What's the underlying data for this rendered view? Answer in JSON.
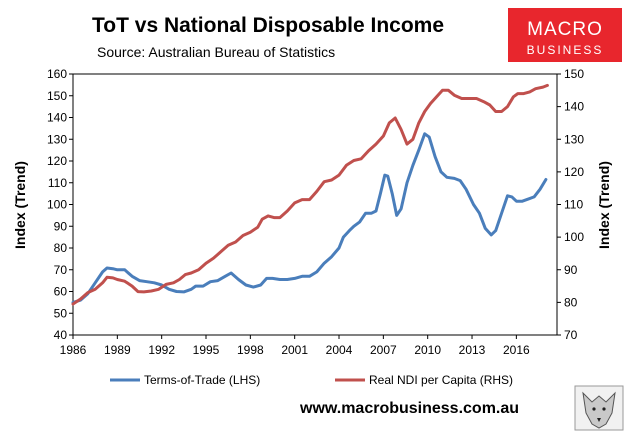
{
  "header": {
    "title": "ToT vs National Disposable Income",
    "subtitle": "Source: Australian Bureau of Statistics"
  },
  "logo": {
    "line1": "MACRO",
    "line2": "BUSINESS",
    "color": "#e8262d"
  },
  "footer": {
    "url": "www.macrobusiness.com.au",
    "badge_icon": "wolf-icon"
  },
  "chart_data": {
    "type": "line",
    "x_tick_labels": [
      "1986",
      "1989",
      "1992",
      "1995",
      "1998",
      "2001",
      "2004",
      "2007",
      "2010",
      "2013",
      "2016"
    ],
    "xlim": [
      1986,
      2018.75
    ],
    "ylabel_left": "Index (Trend)",
    "ylabel_right": "Index (Trend)",
    "ylim_left": [
      40,
      160
    ],
    "ylim_right": [
      70,
      150
    ],
    "y_ticks_left": [
      "40",
      "50",
      "60",
      "70",
      "80",
      "90",
      "100",
      "110",
      "120",
      "130",
      "140",
      "150",
      "160"
    ],
    "y_ticks_right": [
      "70",
      "80",
      "90",
      "100",
      "110",
      "120",
      "130",
      "140",
      "150"
    ],
    "grid": false,
    "legend_position": "bottom",
    "series": [
      {
        "name": "Terms-of-Trade (LHS)",
        "axis": "left",
        "color": "#4a7ebb",
        "points": [
          [
            1986,
            55
          ],
          [
            1986.5,
            56
          ],
          [
            1987,
            59
          ],
          [
            1987.5,
            64
          ],
          [
            1988,
            69
          ],
          [
            1988.3,
            70.8
          ],
          [
            1988.7,
            70.5
          ],
          [
            1989,
            70
          ],
          [
            1989.5,
            70
          ],
          [
            1990,
            67
          ],
          [
            1990.5,
            65
          ],
          [
            1991,
            64.5
          ],
          [
            1991.5,
            64
          ],
          [
            1992,
            63
          ],
          [
            1992.5,
            61
          ],
          [
            1993,
            60
          ],
          [
            1993.5,
            59.8
          ],
          [
            1994,
            61
          ],
          [
            1994.3,
            62.5
          ],
          [
            1994.8,
            62.5
          ],
          [
            1995.3,
            64.5
          ],
          [
            1995.8,
            65
          ],
          [
            1996.3,
            67
          ],
          [
            1996.7,
            68.5
          ],
          [
            1997.2,
            65.5
          ],
          [
            1997.7,
            63
          ],
          [
            1998.2,
            62
          ],
          [
            1998.7,
            63
          ],
          [
            1999.1,
            66
          ],
          [
            1999.5,
            66
          ],
          [
            2000,
            65.5
          ],
          [
            2000.5,
            65.5
          ],
          [
            2001,
            66
          ],
          [
            2001.5,
            67
          ],
          [
            2002,
            67
          ],
          [
            2002.5,
            69
          ],
          [
            2003,
            73
          ],
          [
            2003.5,
            76
          ],
          [
            2004,
            80
          ],
          [
            2004.3,
            85
          ],
          [
            2004.7,
            88
          ],
          [
            2005,
            90
          ],
          [
            2005.4,
            92
          ],
          [
            2005.8,
            96
          ],
          [
            2006.2,
            96
          ],
          [
            2006.5,
            97
          ],
          [
            2006.8,
            105
          ],
          [
            2007.1,
            113.5
          ],
          [
            2007.3,
            113
          ],
          [
            2007.6,
            105
          ],
          [
            2007.9,
            95
          ],
          [
            2008.2,
            98
          ],
          [
            2008.6,
            110
          ],
          [
            2009,
            118
          ],
          [
            2009.4,
            125
          ],
          [
            2009.8,
            132.5
          ],
          [
            2010.1,
            131
          ],
          [
            2010.5,
            122
          ],
          [
            2010.9,
            115
          ],
          [
            2011.3,
            112.5
          ],
          [
            2011.8,
            112
          ],
          [
            2012.2,
            111
          ],
          [
            2012.6,
            107
          ],
          [
            2013.1,
            100
          ],
          [
            2013.5,
            96
          ],
          [
            2013.9,
            89
          ],
          [
            2014.3,
            86
          ],
          [
            2014.6,
            88
          ],
          [
            2015,
            96
          ],
          [
            2015.4,
            104
          ],
          [
            2015.7,
            103.5
          ],
          [
            2016,
            101.5
          ],
          [
            2016.4,
            101.5
          ],
          [
            2016.8,
            102.5
          ],
          [
            2017.2,
            103.5
          ],
          [
            2017.6,
            107
          ],
          [
            2018,
            111.5
          ]
        ]
      },
      {
        "name": "Real NDI per Capita (RHS)",
        "axis": "right",
        "color": "#c0504d",
        "points": [
          [
            1986,
            79.5
          ],
          [
            1986.5,
            81
          ],
          [
            1987,
            83
          ],
          [
            1987.5,
            84
          ],
          [
            1988,
            86
          ],
          [
            1988.3,
            87.7
          ],
          [
            1988.7,
            87.5
          ],
          [
            1989,
            87
          ],
          [
            1989.5,
            86.5
          ],
          [
            1990,
            85
          ],
          [
            1990.4,
            83.3
          ],
          [
            1990.8,
            83.2
          ],
          [
            1991.3,
            83.5
          ],
          [
            1991.8,
            84
          ],
          [
            1992.3,
            85.5
          ],
          [
            1992.8,
            86
          ],
          [
            1993.2,
            87
          ],
          [
            1993.6,
            88.5
          ],
          [
            1994,
            89
          ],
          [
            1994.5,
            90
          ],
          [
            1995,
            92
          ],
          [
            1995.5,
            93.5
          ],
          [
            1996,
            95.5
          ],
          [
            1996.5,
            97.5
          ],
          [
            1997,
            98.5
          ],
          [
            1997.5,
            100.5
          ],
          [
            1998,
            101.5
          ],
          [
            1998.5,
            103
          ],
          [
            1998.8,
            105.5
          ],
          [
            1999.2,
            106.5
          ],
          [
            1999.6,
            106
          ],
          [
            2000,
            106
          ],
          [
            2000.5,
            108
          ],
          [
            2001,
            110.5
          ],
          [
            2001.5,
            111.5
          ],
          [
            2002,
            111.5
          ],
          [
            2002.5,
            114
          ],
          [
            2003,
            117
          ],
          [
            2003.5,
            117.5
          ],
          [
            2004,
            119
          ],
          [
            2004.5,
            122
          ],
          [
            2005,
            123.5
          ],
          [
            2005.5,
            124
          ],
          [
            2006,
            126.5
          ],
          [
            2006.5,
            128.5
          ],
          [
            2007,
            131
          ],
          [
            2007.4,
            135
          ],
          [
            2007.8,
            136.5
          ],
          [
            2008.2,
            133
          ],
          [
            2008.6,
            128.5
          ],
          [
            2009,
            130
          ],
          [
            2009.4,
            135
          ],
          [
            2009.8,
            138.5
          ],
          [
            2010.2,
            141
          ],
          [
            2010.6,
            143
          ],
          [
            2011,
            145
          ],
          [
            2011.4,
            145
          ],
          [
            2011.8,
            143.5
          ],
          [
            2012.3,
            142.5
          ],
          [
            2012.8,
            142.5
          ],
          [
            2013.3,
            142.5
          ],
          [
            2013.8,
            141.5
          ],
          [
            2014.2,
            140.5
          ],
          [
            2014.6,
            138.5
          ],
          [
            2015,
            138.5
          ],
          [
            2015.4,
            140
          ],
          [
            2015.8,
            143
          ],
          [
            2016.1,
            144
          ],
          [
            2016.5,
            144
          ],
          [
            2016.9,
            144.5
          ],
          [
            2017.3,
            145.5
          ],
          [
            2017.8,
            146
          ],
          [
            2018.1,
            146.5
          ]
        ]
      }
    ]
  }
}
